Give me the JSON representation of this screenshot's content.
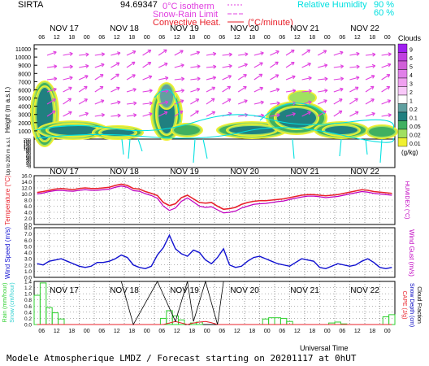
{
  "header": {
    "site": "SIRTA",
    "coords": "94.69347",
    "legend_isotherm": "0°C isotherm",
    "legend_snow": "Snow-Rain Limit",
    "legend_convective": "Convective Heat.",
    "legend_convective_unit": "(°C/minute)",
    "legend_rh": "Relative Humidity",
    "legend_rh_90": "90 %",
    "legend_rh_60": "60 %"
  },
  "colors": {
    "grid": "#000000",
    "temp": "#e8202a",
    "humidex": "#c000c0",
    "wind": "#1010d0",
    "rain": "#30d030",
    "snow": "#30d0d0",
    "cape": "#e8202a",
    "snowdepth": "#0000c0",
    "cloudfrac": "#000000",
    "rh": "#00e0e0",
    "arrows": "#e040e0"
  },
  "cloud_scale": {
    "title": "Clouds",
    "unit": "(g/kg)",
    "levels": [
      "9",
      "6",
      "5",
      "4",
      "3",
      "2",
      "1",
      "0.2",
      "0.1",
      "0.05",
      "0.02",
      "0.01"
    ],
    "colors": [
      "#a020f0",
      "#c040e0",
      "#d060d8",
      "#e080e8",
      "#f0a0f0",
      "#f8c8f8",
      "#ffffff",
      "#60a0a0",
      "#208080",
      "#40b060",
      "#a0e060",
      "#f0f030"
    ]
  },
  "chart_data": [
    {
      "type": "heatmap",
      "title": "",
      "ylabel": "Height (m a.s.l.)",
      "ylabel2": "Up to 200 m a.s.l.",
      "days": [
        "NOV 17",
        "NOV 18",
        "NOV 19",
        "NOV 20",
        "NOV 21",
        "NOV 22"
      ],
      "hours": [
        "06",
        "12",
        "18",
        "00"
      ],
      "y_ticks_main": [
        1000,
        2000,
        3000,
        4000,
        5000,
        6000,
        7000,
        8000,
        9000,
        10000,
        11000
      ],
      "y_ticks_low": [
        0,
        10,
        20,
        30,
        40,
        50,
        60,
        70,
        80,
        90,
        100,
        120,
        140,
        160,
        180,
        200
      ]
    },
    {
      "type": "line",
      "xlabel": "",
      "ylabel": "Temperature (°C)",
      "ylabel2": "HUMIDEX (°C)",
      "ylim": [
        0,
        16
      ],
      "y_ticks": [
        0,
        2,
        4,
        6,
        8,
        10,
        12,
        14,
        16
      ],
      "series": [
        {
          "name": "Temperature",
          "values": [
            10.5,
            10.8,
            11.2,
            11.6,
            11.8,
            11.6,
            11.4,
            11.8,
            12.0,
            11.8,
            11.8,
            12.0,
            12.2,
            12.8,
            13.2,
            12.8,
            11.8,
            11.6,
            10.8,
            10.2,
            9.5,
            7.2,
            6.2,
            6.8,
            8.8,
            9.6,
            8.4,
            7.2,
            7.0,
            7.2,
            6.0,
            5.0,
            5.2,
            5.6,
            6.6,
            7.2,
            7.6,
            7.8,
            7.8,
            8.0,
            8.2,
            8.4,
            8.8,
            9.2,
            9.6,
            9.8,
            9.8,
            9.6,
            9.4,
            9.6,
            9.8,
            10.2,
            10.6,
            11.0,
            11.4,
            11.2,
            10.8,
            10.6,
            10.4,
            10.2
          ]
        },
        {
          "name": "Humidex",
          "values": [
            10.0,
            10.3,
            10.8,
            11.1,
            11.2,
            11.0,
            10.9,
            11.2,
            11.4,
            11.2,
            11.2,
            11.4,
            11.6,
            12.2,
            12.6,
            12.2,
            11.1,
            10.9,
            10.1,
            9.5,
            8.6,
            6.0,
            4.6,
            5.4,
            7.6,
            8.7,
            7.4,
            6.0,
            5.6,
            5.8,
            4.8,
            3.8,
            4.0,
            4.4,
            5.4,
            6.0,
            6.6,
            6.8,
            6.9,
            7.2,
            7.5,
            7.7,
            8.2,
            8.6,
            9.0,
            9.3,
            9.3,
            9.1,
            8.8,
            9.0,
            9.2,
            9.6,
            10.0,
            10.4,
            10.8,
            10.6,
            10.2,
            10.0,
            9.8,
            9.6
          ]
        }
      ]
    },
    {
      "type": "line",
      "ylabel": "Wind Speed (m/s)",
      "ylabel2": "Wind Gust (m/s)",
      "ylim": [
        0,
        8
      ],
      "y_ticks": [
        0,
        1,
        2,
        3,
        4,
        5,
        6,
        7,
        8
      ],
      "series": [
        {
          "name": "Wind Speed",
          "values": [
            2.2,
            2.0,
            2.6,
            2.8,
            3.0,
            2.6,
            2.2,
            1.8,
            1.6,
            1.8,
            2.4,
            2.4,
            2.6,
            3.0,
            3.6,
            3.2,
            2.0,
            1.6,
            1.4,
            1.8,
            3.6,
            4.8,
            6.8,
            4.6,
            3.8,
            3.4,
            4.4,
            4.0,
            2.8,
            2.2,
            3.2,
            4.6,
            2.0,
            1.6,
            1.8,
            2.6,
            3.2,
            3.4,
            3.0,
            2.6,
            2.2,
            2.0,
            1.8,
            2.4,
            3.0,
            2.8,
            2.6,
            1.6,
            1.4,
            1.8,
            2.2,
            2.0,
            1.8,
            2.0,
            2.6,
            3.0,
            2.4,
            1.6,
            1.4,
            1.6
          ]
        }
      ]
    },
    {
      "type": "bar",
      "ylabel": "Rain (mm/hour)",
      "ylabel3": "Snow (cm/hour)",
      "ylabel2": "CAPE (J/g)",
      "ylabel4": "Snow Depth (cm)",
      "ylabel5": "Cloud Fraction",
      "xlabel": "Universal Time",
      "ylim": [
        0,
        1.4
      ],
      "y_ticks": [
        0,
        0.2,
        0.4,
        0.6,
        0.8,
        1.0,
        1.2,
        1.4
      ],
      "rain_hourly": [
        0.95,
        1.35,
        0.55,
        0.38,
        0.18,
        0,
        0,
        0,
        0,
        0,
        0,
        0,
        0,
        0,
        0,
        0,
        0,
        0,
        0,
        0,
        0,
        0.2,
        0.45,
        0.28,
        0.15,
        0,
        0.05,
        0.08,
        0,
        0,
        0,
        0,
        0,
        0,
        0,
        0,
        0,
        0,
        0.18,
        0.22,
        0.22,
        0.2,
        0.1,
        0,
        0,
        0,
        0,
        0,
        0,
        0.05,
        0.08,
        0.02,
        0,
        0,
        0,
        0,
        0,
        0,
        0.25,
        0.32
      ],
      "cape_values": [
        0,
        0,
        0,
        0,
        0,
        0,
        0,
        0,
        0,
        0,
        0,
        0,
        0,
        0,
        0,
        0,
        0,
        0,
        0,
        0,
        0,
        0,
        0.05,
        0.1,
        0.05,
        0,
        0.05,
        0.08,
        0.1,
        0.06,
        0,
        0,
        0,
        0,
        0,
        0,
        0,
        0,
        0,
        0,
        0,
        0,
        0,
        0,
        0,
        0,
        0,
        0,
        0,
        0,
        0,
        0,
        0,
        0,
        0,
        0,
        0,
        0,
        0,
        0
      ],
      "cloud_fraction_spikes": [
        [
          14,
          1.4
        ],
        [
          16,
          0.0
        ],
        [
          20,
          1.4
        ],
        [
          23,
          0.1
        ],
        [
          25,
          1.4
        ],
        [
          26,
          0.1
        ],
        [
          28,
          1.4
        ],
        [
          30,
          0.0
        ],
        [
          31,
          1.4
        ]
      ]
    }
  ],
  "footer": {
    "caption": "Modele Atmospherique LMDZ / Forecast starting on 20201117 at 0hUT"
  }
}
